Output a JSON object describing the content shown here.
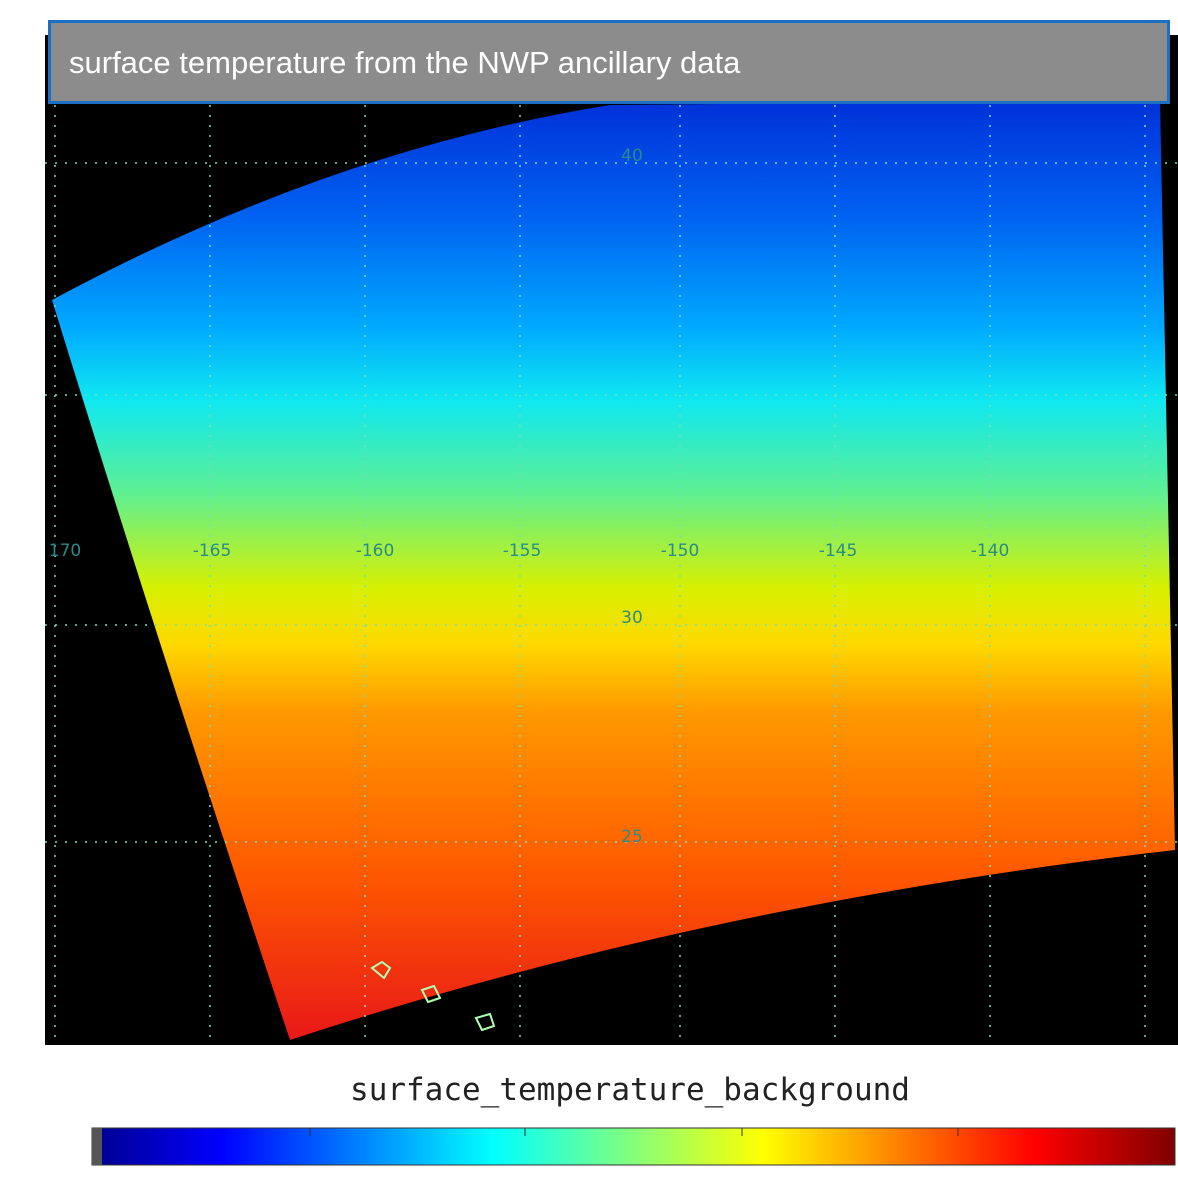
{
  "header": {
    "title": "surface temperature from the NWP ancillary data"
  },
  "map": {
    "lat_labels": [
      "40",
      "30",
      "25"
    ],
    "lon_labels": [
      "170",
      "-165",
      "-160",
      "-155",
      "-150",
      "-145",
      "-140"
    ]
  },
  "colorbar": {
    "title": "surface_temperature_background"
  }
}
